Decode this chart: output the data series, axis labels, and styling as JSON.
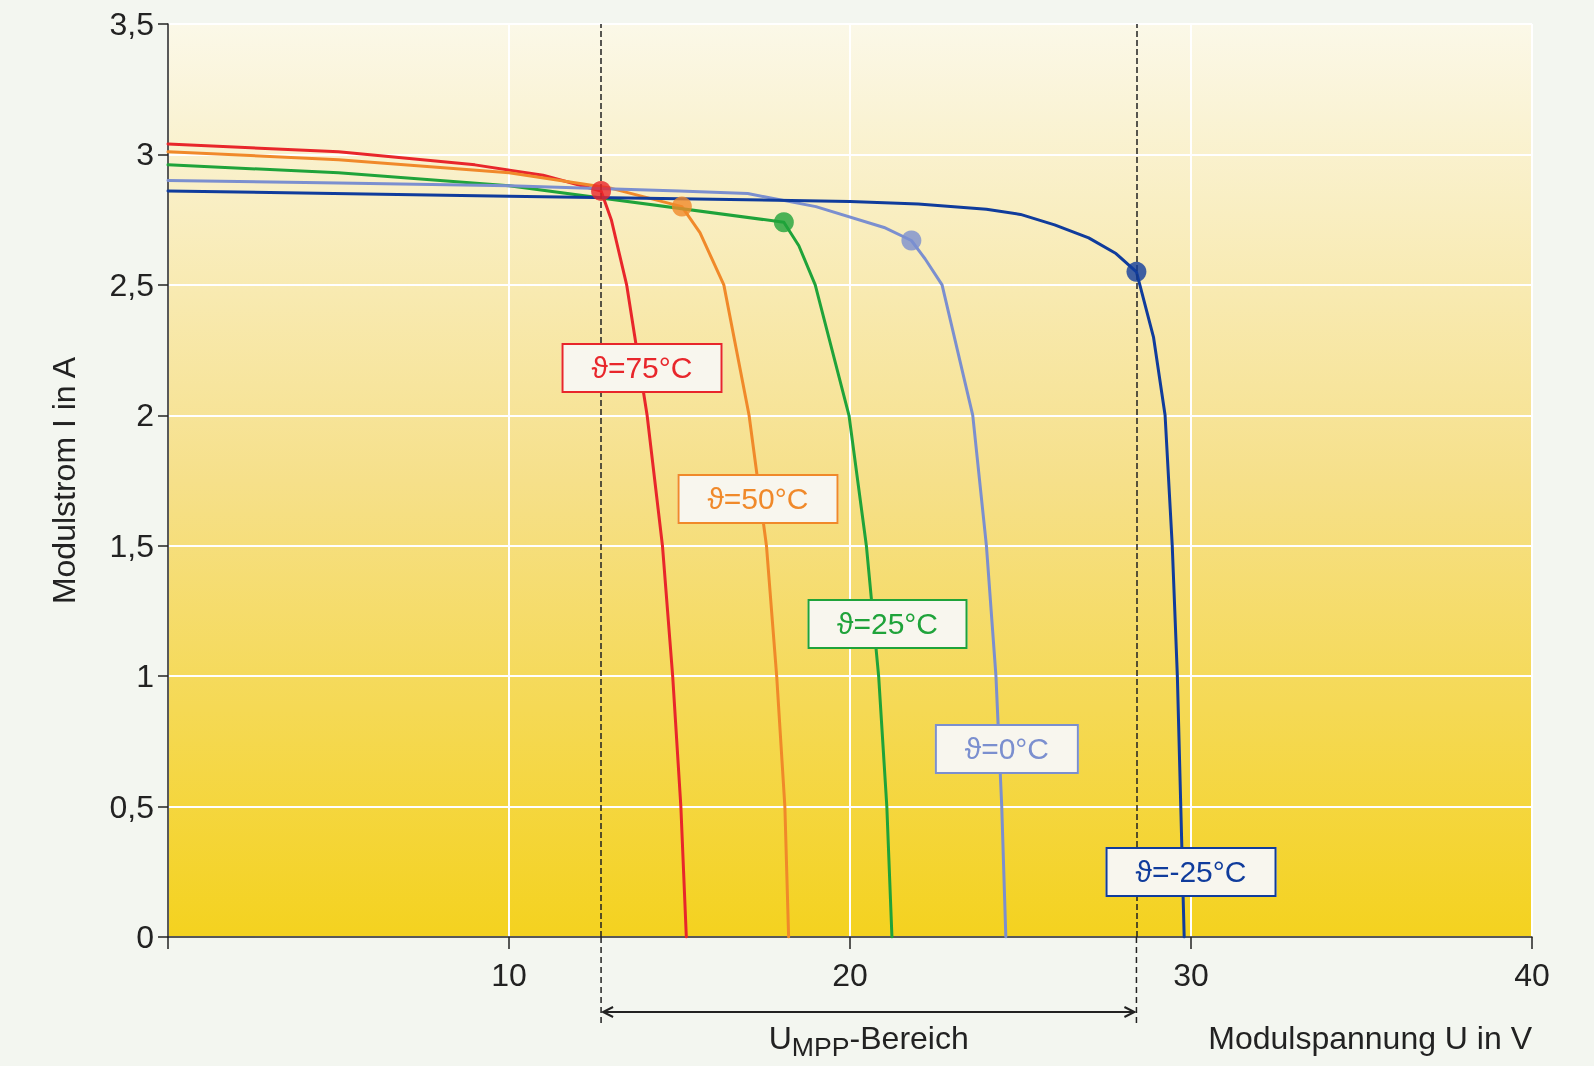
{
  "chart_data": {
    "type": "line",
    "xlabel": "Modulspannung U in V",
    "ylabel": "Modulstrom I in A",
    "xlim": [
      0,
      40
    ],
    "xticks": [
      {
        "value": 0,
        "label": null
      },
      10,
      20,
      30,
      40
    ],
    "ylim": [
      0,
      3.5
    ],
    "yticks": [
      0,
      {
        "value": 0.5,
        "label": "0,5"
      },
      1,
      {
        "value": 1.5,
        "label": "1,5"
      },
      2,
      {
        "value": 2.5,
        "label": "2,5"
      },
      3,
      {
        "value": 3.5,
        "label": "3,5"
      }
    ],
    "grid": true,
    "legend": false,
    "marker": "none",
    "line_style": "solid",
    "series": [
      {
        "name": "ϑ=75°C",
        "color": "#e8262b",
        "x": [
          0,
          5,
          9,
          11,
          12.7,
          13.0,
          13.45,
          14.05,
          14.5,
          14.8,
          15.04,
          15.2
        ],
        "values": [
          3.04,
          3.01,
          2.96,
          2.92,
          2.86,
          2.75,
          2.5,
          2.0,
          1.5,
          1.0,
          0.5,
          0
        ]
      },
      {
        "name": "ϑ=50°C",
        "color": "#f0892a",
        "x": [
          0,
          5,
          10,
          13,
          15.07,
          15.6,
          16.3,
          17.04,
          17.55,
          17.85,
          18.09,
          18.2
        ],
        "values": [
          3.01,
          2.98,
          2.93,
          2.87,
          2.8,
          2.7,
          2.5,
          2.0,
          1.5,
          1.0,
          0.5,
          0
        ]
      },
      {
        "name": "ϑ=25°C",
        "color": "#1fa33a",
        "x": [
          0,
          5,
          10,
          18.06,
          18.5,
          18.98,
          19.97,
          20.48,
          20.84,
          21.08,
          21.23
        ],
        "values": [
          2.96,
          2.93,
          2.88,
          2.74,
          2.65,
          2.5,
          2.0,
          1.5,
          1.0,
          0.5,
          0
        ]
      },
      {
        "name": "ϑ=0°C",
        "color": "#7b8fcf",
        "x": [
          0,
          5,
          10,
          15,
          17,
          19,
          21,
          21.8,
          22.2,
          22.7,
          23.6,
          24.0,
          24.28,
          24.45,
          24.57
        ],
        "values": [
          2.9,
          2.89,
          2.88,
          2.86,
          2.85,
          2.8,
          2.72,
          2.67,
          2.6,
          2.5,
          2.0,
          1.5,
          1.0,
          0.5,
          0
        ]
      },
      {
        "name": "ϑ=-25°C",
        "color": "#103c9c",
        "x": [
          0,
          10,
          20,
          22,
          24,
          25,
          26,
          27,
          27.8,
          28.4,
          28.9,
          29.24,
          29.45,
          29.6,
          29.7,
          29.8
        ],
        "values": [
          2.86,
          2.84,
          2.82,
          2.81,
          2.79,
          2.77,
          2.73,
          2.68,
          2.62,
          2.55,
          2.3,
          2.0,
          1.5,
          1.0,
          0.5,
          0
        ]
      },
      {
        "type": "scatter",
        "marker": "circle",
        "x": [
          12.7,
          15.07,
          18.06,
          21.8,
          28.4
        ],
        "values": [
          2.86,
          2.8,
          2.74,
          2.67,
          2.55
        ],
        "colors": [
          "#e8262b",
          "#f0892a",
          "#1fa33a",
          "#7b8fcf",
          "#103c9c"
        ]
      }
    ],
    "ref_lines": [
      {
        "axis": "x",
        "value": 12.7,
        "color": "#222222",
        "line_style": "dashed"
      },
      {
        "axis": "x",
        "value": 28.4,
        "color": "#222222",
        "line_style": "dashed"
      }
    ],
    "annotations": [
      "U$_{MPP}$-Bereich"
    ]
  }
}
